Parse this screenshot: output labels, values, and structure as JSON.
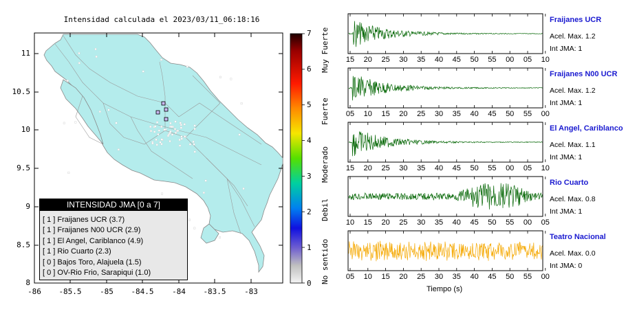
{
  "map": {
    "title": "Intensidad calculada el 2023/03/11_06:18:16",
    "x_ticks": [
      "-86",
      "-85.5",
      "-85",
      "-84.5",
      "-84",
      "-83.5",
      "-83"
    ],
    "y_ticks": [
      "11",
      "10.5",
      "10",
      "9.5",
      "9",
      "8.5",
      "8"
    ],
    "land_color": "#b4ecec",
    "sea_color": "#ffffff"
  },
  "legend": {
    "title": "INTENSIDAD JMA [0 a 7]",
    "rows": [
      "[ 1 ]  Fraijanes UCR (3.7)",
      "[ 1 ]  Fraijanes N00 UCR (2.9)",
      "[ 1 ]  El Angel, Cariblanco (4.9)",
      "[ 1 ]  Rio Cuarto (2.3)",
      "[ 0 ]  Bajos Toro, Alajuela (1.5)",
      "[ 0 ]  OV-Rio Frio, Sarapiqui (1.0)"
    ]
  },
  "colorbar": {
    "ticks": [
      "7",
      "6",
      "5",
      "4",
      "3",
      "2",
      "1",
      "0"
    ],
    "labels": [
      "Muy Fuerte",
      "Fuerte",
      "Moderado",
      "Debil",
      "No sentido"
    ]
  },
  "waveforms": [
    {
      "name": "Fraijanes UCR",
      "accel": "Acel. Max. 1.2",
      "int": "Int JMA: 1",
      "color": "#006400",
      "ticks": [
        "15",
        "20",
        "25",
        "30",
        "35",
        "40",
        "45",
        "50",
        "55",
        "00",
        "05",
        "10"
      ],
      "envelope": "decay"
    },
    {
      "name": "Fraijanes N00 UCR",
      "accel": "Acel. Max. 1.2",
      "int": "Int JMA: 1",
      "color": "#006400",
      "ticks": [
        "05",
        "10",
        "15",
        "20",
        "25",
        "30",
        "35",
        "40",
        "45",
        "50",
        "55",
        "00"
      ],
      "envelope": "decay"
    },
    {
      "name": "El Angel, Cariblanco",
      "accel": "Acel. Max. 1.1",
      "int": "Int JMA: 1",
      "color": "#006400",
      "ticks": [
        "15",
        "20",
        "25",
        "30",
        "35",
        "40",
        "45",
        "50",
        "55",
        "00",
        "05",
        "10"
      ],
      "envelope": "decay"
    },
    {
      "name": "Rio Cuarto",
      "accel": "Acel. Max. 0.8",
      "int": "Int JMA: 1",
      "color": "#006400",
      "ticks": [
        "10",
        "15",
        "20",
        "25",
        "30",
        "35",
        "40",
        "45",
        "50",
        "55",
        "00",
        "05"
      ],
      "envelope": "late"
    },
    {
      "name": "Teatro Nacional",
      "accel": "Acel. Max. 0.0",
      "int": "Int JMA: 0",
      "color": "#f5a800",
      "ticks": [
        "05",
        "10",
        "15",
        "20",
        "25",
        "30",
        "35",
        "40",
        "45",
        "50",
        "55",
        "00"
      ],
      "envelope": "noise"
    }
  ],
  "x_axis_label": "Tiempo (s)"
}
